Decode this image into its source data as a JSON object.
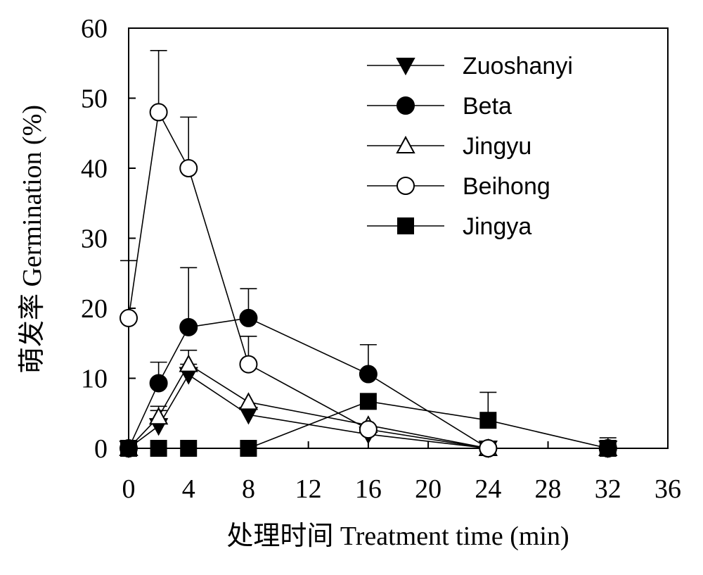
{
  "chart_data": {
    "type": "line",
    "xlabel": "处理时间 Treatment time (min)",
    "ylabel": "萌发率 Germination (%)",
    "xlim": [
      0,
      36
    ],
    "ylim": [
      0,
      60
    ],
    "x_ticks": [
      0,
      4,
      8,
      12,
      16,
      20,
      24,
      28,
      32,
      36
    ],
    "y_ticks": [
      0,
      10,
      20,
      30,
      40,
      50,
      60
    ],
    "x_tick_labels": [
      "0",
      "4",
      "8",
      "12",
      "16",
      "20",
      "24",
      "28",
      "32",
      "36"
    ],
    "y_tick_labels": [
      "0",
      "10",
      "20",
      "30",
      "40",
      "50",
      "60"
    ],
    "grid": false,
    "legend_position": "top-right",
    "series": [
      {
        "name": "Zuoshanyi",
        "marker": "triangle-down",
        "fill": "#000000",
        "x": [
          0,
          2,
          4,
          8,
          16,
          24,
          32
        ],
        "y": [
          0,
          3.2,
          10.5,
          4.8,
          2.0,
          0,
          0
        ],
        "err": [
          0,
          2.2,
          1.5,
          0,
          0,
          0,
          0
        ]
      },
      {
        "name": "Beta",
        "marker": "circle",
        "fill": "#000000",
        "x": [
          0,
          2,
          4,
          8,
          16,
          24,
          32
        ],
        "y": [
          0,
          9.3,
          17.3,
          18.6,
          10.6,
          0,
          0
        ],
        "err": [
          0,
          3.0,
          8.5,
          4.2,
          4.2,
          0,
          1.5
        ]
      },
      {
        "name": "Jingyu",
        "marker": "triangle-up",
        "fill": "#ffffff",
        "x": [
          0,
          2,
          4,
          8,
          16,
          24,
          32
        ],
        "y": [
          0,
          4.5,
          12.0,
          6.6,
          3.3,
          0,
          0
        ],
        "err": [
          0,
          1.5,
          2.0,
          0,
          0,
          0,
          0
        ]
      },
      {
        "name": "Beihong",
        "marker": "circle",
        "fill": "#ffffff",
        "x": [
          0,
          2,
          4,
          8,
          16,
          24,
          32
        ],
        "y": [
          18.6,
          48.0,
          40.0,
          12.0,
          2.7,
          0,
          0
        ],
        "err": [
          8.2,
          8.8,
          7.3,
          4.0,
          0,
          0,
          0
        ]
      },
      {
        "name": "Jingya",
        "marker": "square",
        "fill": "#000000",
        "x": [
          0,
          2,
          4,
          8,
          16,
          24,
          32
        ],
        "y": [
          0,
          0,
          0,
          0,
          6.7,
          4.0,
          0
        ],
        "err": [
          0,
          0,
          0,
          0,
          0,
          4.0,
          0
        ]
      }
    ]
  }
}
